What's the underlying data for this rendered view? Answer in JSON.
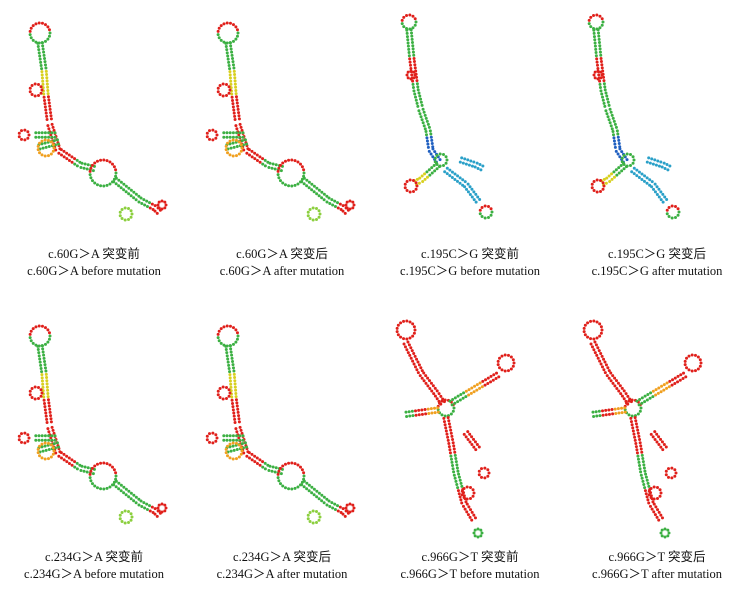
{
  "panels": [
    {
      "caption_cn": "c.60G＞A 突变前",
      "caption_en": "c.60G＞A before mutation",
      "style": "A"
    },
    {
      "caption_cn": "c.60G＞A 突变后",
      "caption_en": "c.60G＞A after mutation",
      "style": "A"
    },
    {
      "caption_cn": "c.195C＞G 突变前",
      "caption_en": "c.195C＞G before mutation",
      "style": "B"
    },
    {
      "caption_cn": "c.195C＞G 突变后",
      "caption_en": "c.195C＞G after mutation",
      "style": "B"
    },
    {
      "caption_cn": "c.234G＞A 突变前",
      "caption_en": "c.234G＞A before mutation",
      "style": "A"
    },
    {
      "caption_cn": "c.234G＞A 突变后",
      "caption_en": "c.234G＞A after mutation",
      "style": "A"
    },
    {
      "caption_cn": "c.966G＞T 突变前",
      "caption_en": "c.966G＞T before mutation",
      "style": "C"
    },
    {
      "caption_cn": "c.966G＞T 突变后",
      "caption_en": "c.966G＞T after mutation",
      "style": "C"
    }
  ],
  "colors": {
    "high": "#e0201b",
    "mid": "#f0a020",
    "yellow": "#d8d020",
    "green": "#3cb043",
    "light_green": "#8ccf3f",
    "cyan": "#2aa0c8",
    "blue": "#1f5fc0"
  }
}
